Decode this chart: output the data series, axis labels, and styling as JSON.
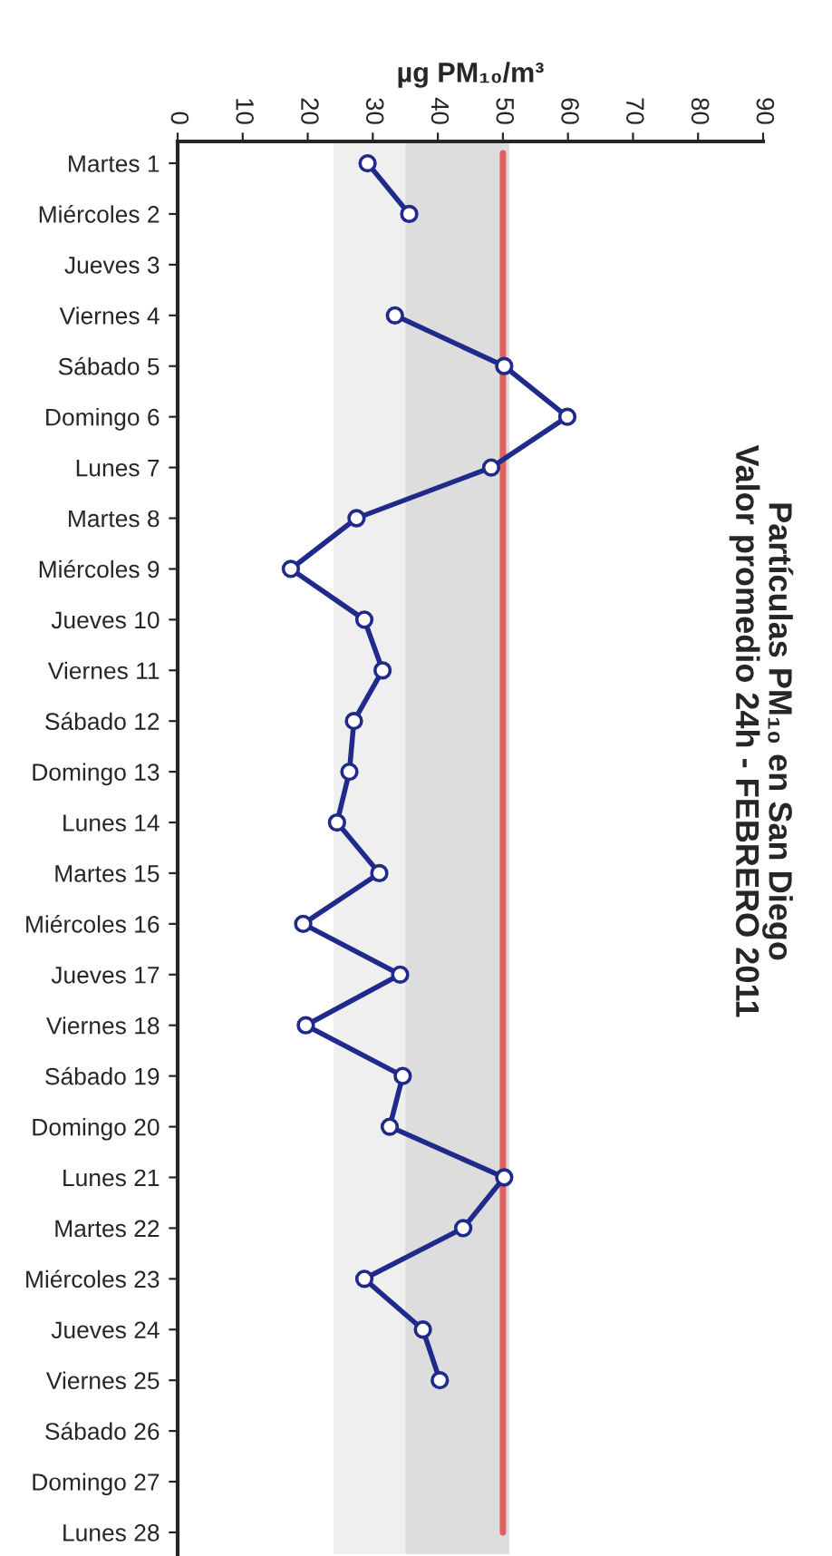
{
  "chart_data": {
    "type": "line",
    "orientation": "horizontal",
    "title": "Partículas PM₁₀ en San Diego\nValor promedio 24h - FEBRERO 2011",
    "xlabel": "µg PM₁₀/m³",
    "categories": [
      "Martes 1",
      "Miércoles 2",
      "Jueves 3",
      "Viernes 4",
      "Sábado 5",
      "Domingo 6",
      "Lunes 7",
      "Martes 8",
      "Miércoles 9",
      "Jueves 10",
      "Viernes 11",
      "Sábado 12",
      "Domingo 13",
      "Lunes 14",
      "Martes 15",
      "Miércoles 16",
      "Jueves 17",
      "Viernes 18",
      "Sábado 19",
      "Domingo 20",
      "Lunes 21",
      "Martes 22",
      "Miércoles 23",
      "Jueves 24",
      "Viernes 25",
      "Sábado 26",
      "Domingo 27",
      "Lunes 28"
    ],
    "series": [
      {
        "color": "#1f2a8a",
        "values": [
          29.2,
          35.6,
          null,
          33.4,
          50.2,
          59.9,
          48.2,
          27.5,
          17.4,
          28.7,
          31.5,
          27.1,
          26.4,
          24.5,
          31.0,
          19.3,
          34.2,
          19.7,
          34.6,
          32.6,
          50.2,
          43.9,
          28.7,
          37.7,
          40.3,
          null,
          null,
          null
        ]
      }
    ],
    "xlim": [
      0,
      90
    ],
    "xticks": [
      0,
      10,
      20,
      30,
      40,
      50,
      60,
      70,
      80,
      90
    ],
    "bands": [
      {
        "axis": "x",
        "from": 24,
        "to": 35,
        "color": "#efefef"
      },
      {
        "axis": "x",
        "from": 35,
        "to": 51,
        "color": "#dddddd"
      }
    ],
    "ref_lines": [
      {
        "axis": "x",
        "value": 50,
        "color": "#e06060",
        "line_style": "solid"
      }
    ],
    "marker": "circle",
    "line_style": "solid",
    "grid": false,
    "legend": false
  }
}
